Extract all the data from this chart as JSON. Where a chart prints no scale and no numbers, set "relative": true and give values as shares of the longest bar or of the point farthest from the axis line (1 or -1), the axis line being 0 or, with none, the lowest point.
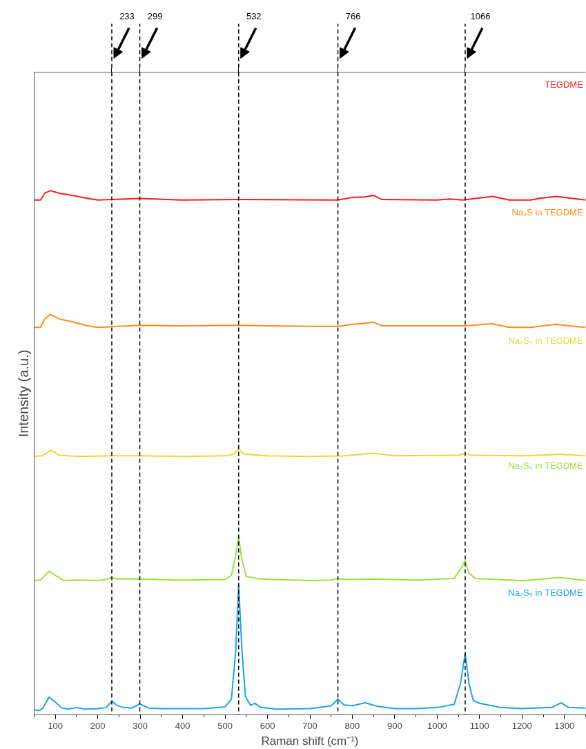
{
  "chart_data": {
    "type": "line",
    "relative": true,
    "xlabel": "Raman shift (cm⁻¹)",
    "ylabel": "Intensity (a.u.)",
    "xlim": [
      50,
      1350
    ],
    "xticks": [
      100,
      200,
      300,
      400,
      500,
      600,
      700,
      800,
      900,
      1000,
      1100,
      1200,
      1300
    ],
    "tick_labels": "x",
    "line_style": "solid",
    "series": [
      {
        "name": "TEGDME",
        "color": "#ff1a1a",
        "x": [
          50,
          65,
          75,
          88,
          110,
          140,
          170,
          200,
          300,
          400,
          532,
          766,
          800,
          830,
          850,
          870,
          1000,
          1030,
          1060,
          1130,
          1170,
          1220,
          1240,
          1280,
          1310,
          1350
        ],
        "values": [
          0.982,
          0.982,
          0.995,
          1.0,
          0.995,
          0.991,
          0.986,
          0.982,
          0.985,
          0.982,
          0.983,
          0.982,
          0.987,
          0.988,
          0.991,
          0.983,
          0.982,
          0.984,
          0.982,
          0.989,
          0.982,
          0.982,
          0.985,
          0.989,
          0.986,
          0.982
        ]
      },
      {
        "name": "Na₂S in TEGDME",
        "color": "#ff8c1a",
        "x": [
          50,
          65,
          75,
          88,
          110,
          140,
          170,
          200,
          300,
          400,
          532,
          600,
          700,
          766,
          800,
          830,
          850,
          870,
          1000,
          1066,
          1130,
          1170,
          1220,
          1240,
          1280,
          1310,
          1350
        ],
        "values": [
          0.739,
          0.739,
          0.755,
          0.764,
          0.755,
          0.75,
          0.743,
          0.739,
          0.743,
          0.742,
          0.743,
          0.742,
          0.741,
          0.741,
          0.745,
          0.747,
          0.749,
          0.742,
          0.742,
          0.742,
          0.746,
          0.739,
          0.739,
          0.741,
          0.745,
          0.742,
          0.739
        ]
      },
      {
        "name": "Na₂S₂ in TEGDME",
        "color": "#e6d83a",
        "x": [
          50,
          70,
          90,
          110,
          150,
          233,
          299,
          400,
          500,
          520,
          532,
          545,
          600,
          700,
          780,
          850,
          900,
          1050,
          1066,
          1080,
          1200,
          1290,
          1350
        ],
        "values": [
          0.493,
          0.494,
          0.505,
          0.495,
          0.493,
          0.494,
          0.494,
          0.493,
          0.494,
          0.497,
          0.507,
          0.497,
          0.494,
          0.493,
          0.494,
          0.499,
          0.494,
          0.495,
          0.499,
          0.495,
          0.494,
          0.497,
          0.494
        ]
      },
      {
        "name": "Na₂S₄ in TEGDME",
        "color": "#9de03a",
        "x": [
          50,
          65,
          85,
          100,
          120,
          150,
          200,
          220,
          233,
          245,
          299,
          400,
          500,
          515,
          525,
          532,
          540,
          550,
          580,
          700,
          750,
          766,
          780,
          850,
          950,
          1040,
          1055,
          1066,
          1075,
          1090,
          1200,
          1290,
          1350
        ],
        "values": [
          0.256,
          0.257,
          0.274,
          0.266,
          0.256,
          0.257,
          0.256,
          0.258,
          0.262,
          0.259,
          0.259,
          0.257,
          0.258,
          0.266,
          0.305,
          0.339,
          0.295,
          0.264,
          0.259,
          0.256,
          0.257,
          0.26,
          0.258,
          0.259,
          0.257,
          0.26,
          0.278,
          0.294,
          0.27,
          0.26,
          0.256,
          0.262,
          0.256
        ]
      },
      {
        "name": "Na₂S₅ in TEGDME",
        "color": "#1aa3f0",
        "x": [
          50,
          60,
          70,
          85,
          100,
          115,
          130,
          150,
          170,
          200,
          220,
          233,
          245,
          260,
          280,
          299,
          320,
          350,
          400,
          450,
          500,
          515,
          525,
          532,
          540,
          548,
          560,
          570,
          585,
          620,
          700,
          750,
          766,
          780,
          800,
          830,
          860,
          900,
          950,
          1000,
          1040,
          1055,
          1066,
          1075,
          1085,
          1100,
          1150,
          1200,
          1270,
          1292,
          1310,
          1350
        ],
        "values": [
          0.01,
          0.008,
          0.012,
          0.034,
          0.024,
          0.013,
          0.011,
          0.014,
          0.011,
          0.012,
          0.014,
          0.026,
          0.018,
          0.014,
          0.013,
          0.021,
          0.013,
          0.012,
          0.012,
          0.012,
          0.015,
          0.03,
          0.12,
          0.248,
          0.12,
          0.035,
          0.018,
          0.022,
          0.014,
          0.011,
          0.012,
          0.017,
          0.03,
          0.019,
          0.017,
          0.023,
          0.016,
          0.012,
          0.012,
          0.014,
          0.02,
          0.06,
          0.117,
          0.06,
          0.027,
          0.022,
          0.014,
          0.012,
          0.014,
          0.023,
          0.014,
          0.013
        ]
      }
    ],
    "ref_lines": [
      {
        "axis": "x",
        "value": 233,
        "label": "233",
        "color": "#000000",
        "line_style": "dashed"
      },
      {
        "axis": "x",
        "value": 299,
        "label": "299",
        "color": "#000000",
        "line_style": "dashed"
      },
      {
        "axis": "x",
        "value": 532,
        "label": "532",
        "color": "#000000",
        "line_style": "dashed"
      },
      {
        "axis": "x",
        "value": 766,
        "label": "766",
        "color": "#000000",
        "line_style": "dashed"
      },
      {
        "axis": "x",
        "value": 1066,
        "label": "1066",
        "color": "#000000",
        "line_style": "dashed"
      }
    ]
  }
}
